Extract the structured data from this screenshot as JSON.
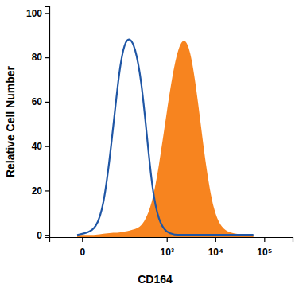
{
  "chart_data": {
    "type": "line",
    "x_label": "CD164",
    "y_label": "Relative Cell Number",
    "log": "x",
    "x": [
      -5,
      6,
      17,
      33,
      56,
      90,
      122,
      158,
      210,
      289,
      380,
      498,
      678,
      992,
      1446,
      2104,
      3060,
      4440,
      6450,
      9370,
      13580,
      19700,
      28540,
      60060
    ],
    "series": [
      {
        "type": "line",
        "color": "#1f56a5",
        "values": [
          0,
          1,
          3,
          12,
          40,
          75,
          87,
          89,
          85,
          70,
          45,
          20,
          6,
          1,
          0,
          0,
          0,
          0,
          0,
          0,
          0,
          0,
          0,
          0
        ]
      },
      {
        "type": "area",
        "color": "#f7841f",
        "values": [
          0,
          0,
          0,
          0.5,
          1,
          1,
          1.5,
          2,
          2.5,
          4,
          8,
          15,
          30,
          55,
          78,
          90,
          85,
          60,
          30,
          10,
          3,
          1,
          0.3,
          0
        ]
      }
    ],
    "xlim": [
      -70,
      380000
    ],
    "xticks": [
      0,
      {
        "value": 1000,
        "label": "10³"
      },
      {
        "value": 10000,
        "label": "10⁴"
      },
      {
        "value": 100000,
        "label": "10⁵"
      }
    ],
    "ylim": [
      -1,
      103
    ],
    "yticks": [
      0,
      20,
      40,
      60,
      80,
      100
    ]
  }
}
